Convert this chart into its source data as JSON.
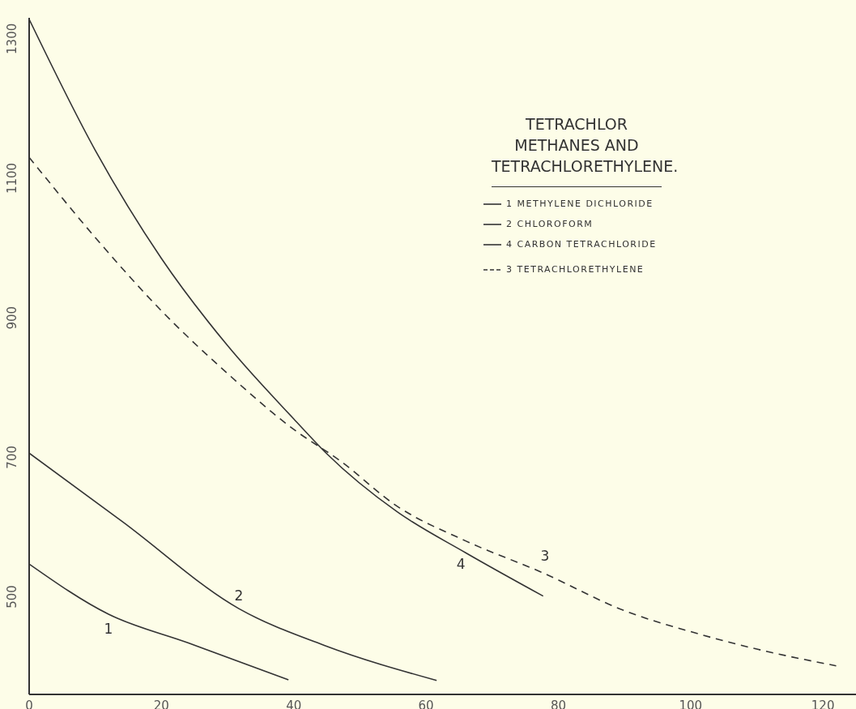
{
  "chart_data": {
    "type": "line",
    "title": "TETRACHLOR METHANES AND TETRACHLORETHYLENE.",
    "xlim": [
      0,
      125
    ],
    "xticks": [
      0,
      20,
      40,
      60,
      80,
      100,
      120
    ],
    "ylim": [
      360,
      1330
    ],
    "yticks": [
      500,
      700,
      900,
      1100,
      1300
    ],
    "grid": false,
    "legend": "top right",
    "marker": "none",
    "series": [
      {
        "name": "1 METHYLENE DICHLORIDE",
        "color": "#333333",
        "line_style": "solid",
        "x": [
          0,
          12,
          24,
          39.2
        ],
        "values": [
          547,
          475,
          434,
          381
        ]
      },
      {
        "name": "2 CHLOROFORM",
        "color": "#333333",
        "line_style": "solid",
        "x": [
          0,
          14.2,
          31.7,
          44.7,
          61.6
        ],
        "values": [
          706,
          607,
          483,
          430,
          380
        ]
      },
      {
        "name": "4 CARBON TETRACHLORIDE",
        "color": "#333333",
        "line_style": "solid",
        "x": [
          0,
          10,
          20,
          30,
          40,
          45,
          55.6,
          66,
          77.7
        ],
        "values": [
          1328,
          1140,
          985,
          860,
          755,
          705,
          622,
          563,
          501
        ]
      },
      {
        "name": "3 TETRACHLORETHYLENE",
        "color": "#333333",
        "line_style": "dashed",
        "x": [
          0,
          10,
          20,
          30,
          40,
          47,
          55.6,
          66,
          77.5,
          90,
          100,
          110,
          122
        ],
        "values": [
          1130,
          1015,
          910,
          820,
          740,
          695,
          630,
          580,
          535,
          480,
          450,
          425,
          401
        ]
      }
    ],
    "annotations": [
      "1",
      "2",
      "4",
      "3"
    ]
  }
}
